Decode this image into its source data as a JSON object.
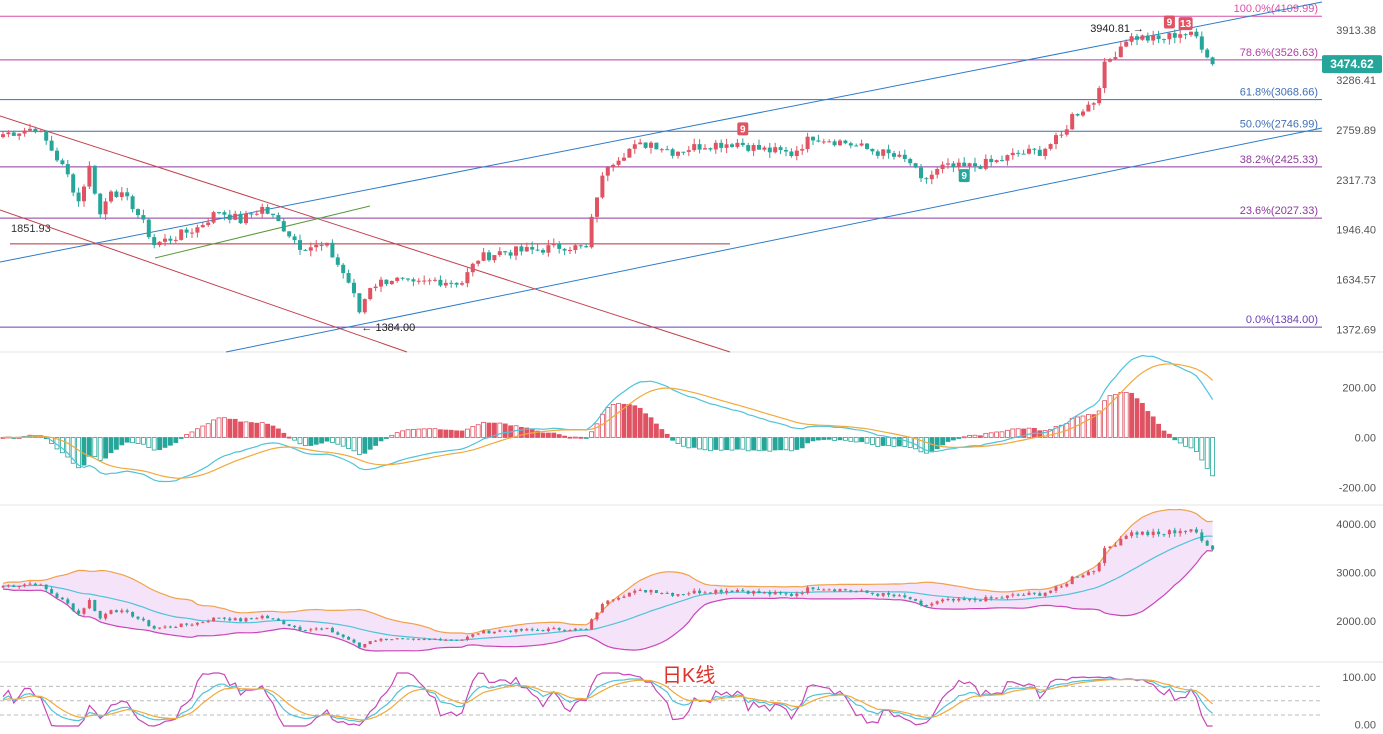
{
  "chart_data": [
    {
      "type": "candlestick",
      "panel": "price",
      "y_axis_ticks": [
        "3913.38",
        "3286.41",
        "2759.89",
        "2317.73",
        "1946.40",
        "1634.57",
        "1372.69"
      ],
      "ylim": [
        1300,
        4200
      ],
      "current_price_label": "3474.62",
      "swing_high_label": "3940.81",
      "swing_low_label": "1384.00",
      "support_label": "1851.93",
      "support_level": 1851.93,
      "td_counts": [
        {
          "label": "9",
          "color": "#e05363",
          "x_index": 137,
          "position": "above"
        },
        {
          "label": "9",
          "color": "#e05363",
          "x_index": 216,
          "position": "above"
        },
        {
          "label": "13",
          "color": "#e05363",
          "x_index": 219,
          "position": "above"
        },
        {
          "label": "9",
          "color": "#26a69a",
          "x_index": 178,
          "position": "below"
        }
      ],
      "fibonacci_levels": [
        {
          "label": "100.0%(4109.99)",
          "value": 4109.99,
          "color": "#d94fa8"
        },
        {
          "label": "78.6%(3526.63)",
          "value": 3526.63,
          "color": "#b23ea6"
        },
        {
          "label": "61.8%(3068.66)",
          "value": 3068.66,
          "color": "#3f6fb5"
        },
        {
          "label": "50.0%(2746.99)",
          "value": 2746.99,
          "color": "#3f6fb5"
        },
        {
          "label": "38.2%(2425.33)",
          "value": 2425.33,
          "color": "#8e3a9e"
        },
        {
          "label": "23.6%(2027.33)",
          "value": 2027.33,
          "color": "#8e3a9e"
        },
        {
          "label": "0.0%(1384.00)",
          "value": 1384.0,
          "color": "#6a3fb5"
        }
      ],
      "colors": {
        "up": "#e05363",
        "down": "#26a69a",
        "ascending_channel": "#2c7cc9",
        "descending_channel": "#c3424f",
        "minor_trend": "#5a9a3c"
      }
    },
    {
      "type": "macd",
      "panel": "macd",
      "y_axis_ticks": [
        "200.00",
        "0.00",
        "-200.00"
      ],
      "ylim": [
        -250,
        310
      ],
      "colors": {
        "dif": "#4fc3d9",
        "dea": "#f2a93b",
        "hist_up": "#e05363",
        "hist_down": "#26a69a"
      }
    },
    {
      "type": "bollinger",
      "panel": "boll",
      "y_axis_ticks": [
        "4000.00",
        "3000.00",
        "2000.00"
      ],
      "ylim": [
        1300,
        4250
      ],
      "colors": {
        "upper": "#f0a24a",
        "middle": "#4fc3d9",
        "lower": "#c946b8",
        "fill": "#f3dcf7"
      }
    },
    {
      "type": "kdj",
      "panel": "kdj",
      "caption": "日K线",
      "y_axis_ticks": [
        "100.00",
        "0.00"
      ],
      "ylim": [
        -5,
        110
      ],
      "colors": {
        "k": "#4fc3d9",
        "d": "#f2a93b",
        "j": "#c946b8",
        "caption": "#e0312c"
      }
    }
  ]
}
